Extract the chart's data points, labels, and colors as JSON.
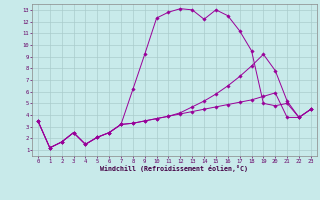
{
  "xlabel": "Windchill (Refroidissement éolien,°C)",
  "bg_color": "#c8eaea",
  "line_color": "#990099",
  "grid_color": "#aacccc",
  "xlim": [
    -0.5,
    23.5
  ],
  "ylim": [
    0.5,
    13.5
  ],
  "xticks": [
    0,
    1,
    2,
    3,
    4,
    5,
    6,
    7,
    8,
    9,
    10,
    11,
    12,
    13,
    14,
    15,
    16,
    17,
    18,
    19,
    20,
    21,
    22,
    23
  ],
  "yticks": [
    1,
    2,
    3,
    4,
    5,
    6,
    7,
    8,
    9,
    10,
    11,
    12,
    13
  ],
  "series": [
    {
      "x": [
        0,
        1,
        2,
        3,
        4,
        5,
        6,
        7,
        8,
        9,
        10,
        11,
        12,
        13,
        14,
        15,
        16,
        17,
        18,
        19,
        20,
        21,
        22,
        23
      ],
      "y": [
        3.5,
        1.2,
        1.7,
        2.5,
        1.5,
        2.1,
        2.5,
        3.2,
        6.2,
        9.2,
        12.3,
        12.8,
        13.1,
        13.0,
        12.2,
        13.0,
        12.5,
        11.2,
        9.5,
        5.0,
        4.8,
        5.0,
        3.8,
        4.5
      ]
    },
    {
      "x": [
        0,
        1,
        2,
        3,
        4,
        5,
        6,
        7,
        8,
        9,
        10,
        11,
        12,
        13,
        14,
        15,
        16,
        17,
        18,
        19,
        20,
        21,
        22,
        23
      ],
      "y": [
        3.5,
        1.2,
        1.7,
        2.5,
        1.5,
        2.1,
        2.5,
        3.2,
        3.3,
        3.5,
        3.7,
        3.9,
        4.1,
        4.3,
        4.5,
        4.7,
        4.9,
        5.1,
        5.3,
        5.6,
        5.9,
        3.8,
        3.8,
        4.5
      ]
    },
    {
      "x": [
        0,
        1,
        2,
        3,
        4,
        5,
        6,
        7,
        8,
        9,
        10,
        11,
        12,
        13,
        14,
        15,
        16,
        17,
        18,
        19,
        20,
        21,
        22,
        23
      ],
      "y": [
        3.5,
        1.2,
        1.7,
        2.5,
        1.5,
        2.1,
        2.5,
        3.2,
        3.3,
        3.5,
        3.7,
        3.9,
        4.2,
        4.7,
        5.2,
        5.8,
        6.5,
        7.3,
        8.2,
        9.2,
        7.8,
        5.2,
        3.8,
        4.5
      ]
    }
  ]
}
